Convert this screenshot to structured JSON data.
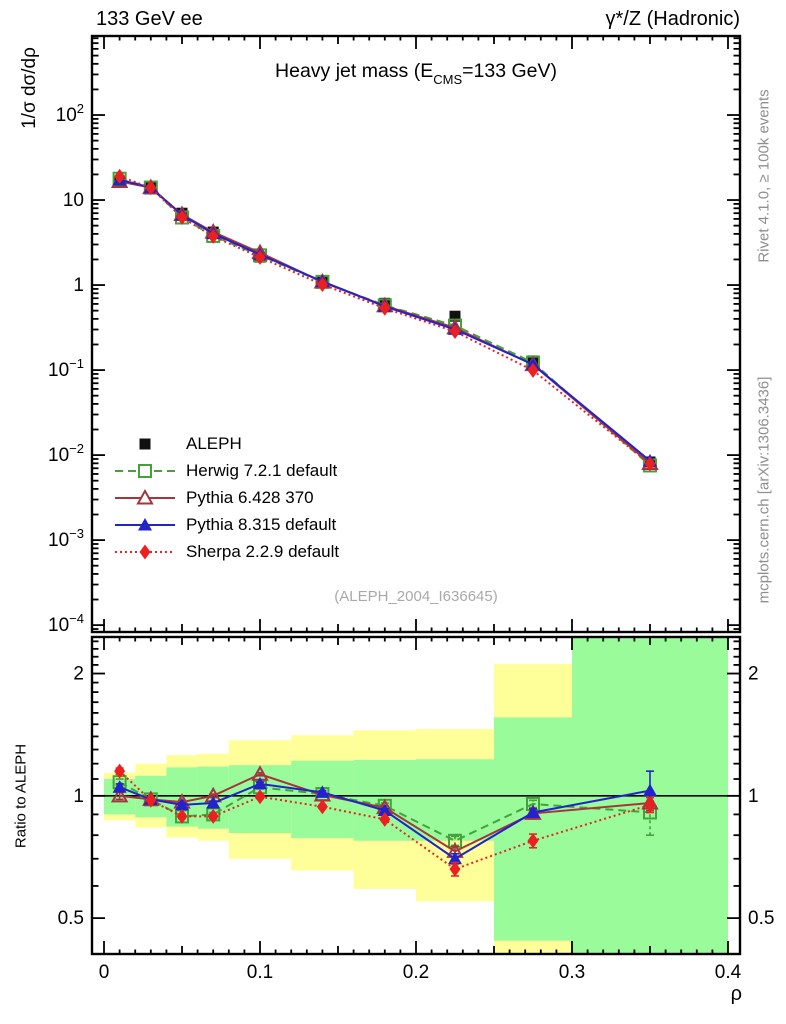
{
  "header": {
    "left": "133 GeV ee",
    "right": "γ*/Z (Hadronic)"
  },
  "title": {
    "pre": "Heavy jet mass (E",
    "sub": "CMS",
    "post": "=133 GeV)"
  },
  "watermark": "(ALEPH_2004_I636645)",
  "side_notes": {
    "right_top": "Rivet 4.1.0, ≥ 100k events",
    "right_bottom": "mcplots.cern.ch [arXiv:1306.3436]"
  },
  "axes": {
    "y_main_label": "1/σ  dσ/dρ",
    "y_ratio_label": "Ratio to ALEPH",
    "x_label": "ρ",
    "x_ticks": [
      0,
      0.1,
      0.2,
      0.3,
      0.4
    ],
    "x_tick_labels": [
      "0",
      "0.1",
      "0.2",
      "0.3",
      "0.4"
    ],
    "y_main_ticks": [
      {
        "v": 100,
        "base": "10",
        "sup": "2"
      },
      {
        "v": 10,
        "base": "10",
        "sup": ""
      },
      {
        "v": 1,
        "base": "1",
        "sup": ""
      },
      {
        "v": 0.1,
        "base": "10",
        "sup": "−1"
      },
      {
        "v": 0.01,
        "base": "10",
        "sup": "−2"
      },
      {
        "v": 0.001,
        "base": "10",
        "sup": "−3"
      },
      {
        "v": 0.0001,
        "base": "10",
        "sup": "−4"
      }
    ],
    "y_ratio_ticks": [
      {
        "v": 2,
        "label": "2"
      },
      {
        "v": 1,
        "label": "1"
      },
      {
        "v": 0.5,
        "label": "0.5"
      }
    ]
  },
  "chart_data": {
    "type": "line",
    "title": "Heavy jet mass (E_CMS=133 GeV)",
    "xlabel": "ρ",
    "ylabel": "1/σ dσ/dρ",
    "ratio_ylabel": "Ratio to ALEPH",
    "x_range": [
      -0.0077,
      0.4077
    ],
    "y_main_range": [
      8.3e-05,
      850
    ],
    "y_ratio_range": [
      0.408,
      2.46
    ],
    "x_bin_edges": [
      0,
      0.02,
      0.04,
      0.06,
      0.08,
      0.12,
      0.16,
      0.2,
      0.25,
      0.3,
      0.4
    ],
    "x": [
      0.01,
      0.03,
      0.05,
      0.07,
      0.1,
      0.14,
      0.18,
      0.225,
      0.275,
      0.35
    ],
    "series": [
      {
        "name": "aleph",
        "label": "ALEPH",
        "color": "#111111",
        "marker": "square-filled",
        "line": "none",
        "values": [
          16.5,
          14.3,
          7.0,
          4.2,
          2.13,
          1.08,
          0.61,
          0.43,
          0.128,
          0.0083
        ]
      },
      {
        "name": "herwig",
        "label": "Herwig 7.2.1 default",
        "color": "#44a13b",
        "marker": "square-open",
        "line": "dashed",
        "ratio": [
          1.08,
          0.98,
          0.89,
          0.9,
          1.05,
          1.01,
          0.945,
          0.775,
          0.955,
          0.91
        ],
        "ratio_err": [
          [
            0.02,
            0.02
          ],
          [
            0.01,
            0.01
          ],
          [
            0.01,
            0.01
          ],
          [
            0.01,
            0.01
          ],
          [
            0.01,
            0.01
          ],
          [
            0.01,
            0.01
          ],
          [
            0.015,
            0.015
          ],
          [
            0.02,
            0.02
          ],
          [
            0.02,
            0.02
          ],
          [
            0.11,
            0.06
          ]
        ]
      },
      {
        "name": "pythia6",
        "label": "Pythia 6.428 370",
        "color": "#a4353e",
        "marker": "triangle-open",
        "line": "solid",
        "ratio": [
          1.0,
          0.98,
          0.965,
          1.0,
          1.13,
          1.005,
          0.935,
          0.73,
          0.905,
          0.96
        ],
        "ratio_err": [
          [
            0.02,
            0.02
          ],
          [
            0.01,
            0.01
          ],
          [
            0.01,
            0.01
          ],
          [
            0.01,
            0.01
          ],
          [
            0.01,
            0.01
          ],
          [
            0.01,
            0.01
          ],
          [
            0.01,
            0.01
          ],
          [
            0.02,
            0.02
          ],
          [
            0.02,
            0.02
          ],
          [
            0.04,
            0.04
          ]
        ]
      },
      {
        "name": "pythia8",
        "label": "Pythia 8.315 default",
        "color": "#2323cc",
        "marker": "triangle-filled",
        "line": "solid",
        "ratio": [
          1.05,
          0.98,
          0.95,
          0.96,
          1.07,
          1.02,
          0.92,
          0.7,
          0.91,
          1.03
        ],
        "ratio_err": [
          [
            0.02,
            0.02
          ],
          [
            0.01,
            0.01
          ],
          [
            0.01,
            0.01
          ],
          [
            0.01,
            0.01
          ],
          [
            0.01,
            0.01
          ],
          [
            0.01,
            0.01
          ],
          [
            0.01,
            0.01
          ],
          [
            0.02,
            0.02
          ],
          [
            0.02,
            0.02
          ],
          [
            0.08,
            0.12
          ]
        ]
      },
      {
        "name": "sherpa",
        "label": "Sherpa 2.2.9 default",
        "color": "#ec2020",
        "marker": "diamond-filled",
        "line": "dotted",
        "ratio": [
          1.15,
          0.975,
          0.89,
          0.89,
          0.995,
          0.94,
          0.875,
          0.66,
          0.775,
          0.95
        ],
        "ratio_err": [
          [
            0.02,
            0.02
          ],
          [
            0.01,
            0.01
          ],
          [
            0.01,
            0.01
          ],
          [
            0.01,
            0.01
          ],
          [
            0.01,
            0.01
          ],
          [
            0.01,
            0.01
          ],
          [
            0.01,
            0.01
          ],
          [
            0.025,
            0.025
          ],
          [
            0.03,
            0.03
          ],
          [
            0.04,
            0.04
          ]
        ]
      }
    ],
    "ratio_bands": [
      {
        "x0": 0.0,
        "x1": 0.02,
        "yellow": [
          0.87,
          1.14
        ],
        "green": [
          0.9,
          1.1
        ]
      },
      {
        "x0": 0.02,
        "x1": 0.04,
        "yellow": [
          0.835,
          1.2
        ],
        "green": [
          0.885,
          1.12
        ]
      },
      {
        "x0": 0.04,
        "x1": 0.06,
        "yellow": [
          0.79,
          1.26
        ],
        "green": [
          0.84,
          1.175
        ]
      },
      {
        "x0": 0.06,
        "x1": 0.08,
        "yellow": [
          0.775,
          1.27
        ],
        "green": [
          0.83,
          1.18
        ]
      },
      {
        "x0": 0.08,
        "x1": 0.12,
        "yellow": [
          0.7,
          1.37
        ],
        "green": [
          0.81,
          1.19
        ]
      },
      {
        "x0": 0.12,
        "x1": 0.16,
        "yellow": [
          0.655,
          1.41
        ],
        "green": [
          0.787,
          1.22
        ]
      },
      {
        "x0": 0.16,
        "x1": 0.2,
        "yellow": [
          0.59,
          1.45
        ],
        "green": [
          0.775,
          1.225
        ]
      },
      {
        "x0": 0.2,
        "x1": 0.25,
        "yellow": [
          0.55,
          1.46
        ],
        "green": [
          0.775,
          1.23
        ]
      },
      {
        "x0": 0.25,
        "x1": 0.3,
        "yellow": [
          0.4,
          2.11
        ],
        "green": [
          0.44,
          1.56
        ]
      },
      {
        "x0": 0.3,
        "x1": 0.4,
        "yellow": null,
        "green": [
          0.4,
          2.46
        ]
      }
    ],
    "colors": {
      "band_yellow": "#ffff99",
      "band_green": "#99fb99",
      "reference_line": "#000000"
    },
    "legend_position": "middle-left",
    "grid": false
  }
}
